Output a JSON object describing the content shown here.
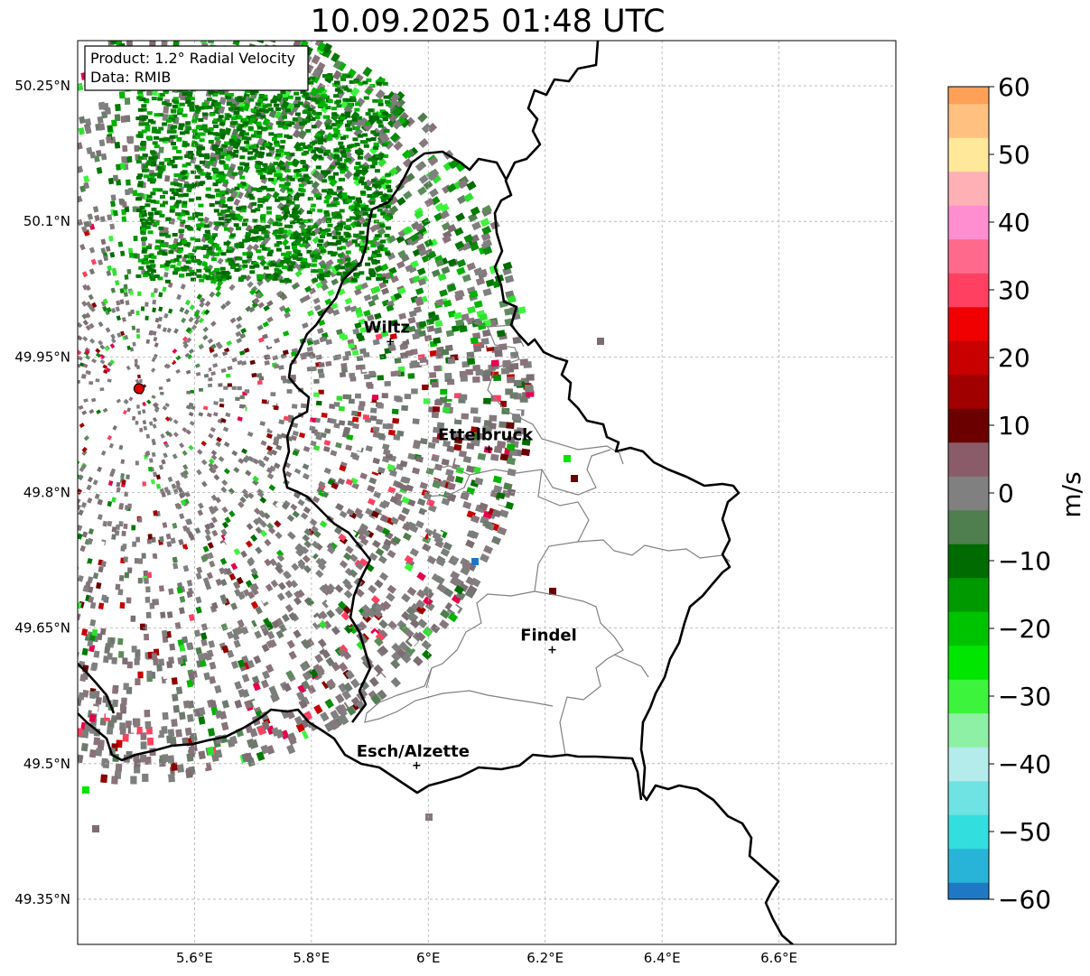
{
  "title": "10.09.2025 01:48 UTC",
  "info_box": {
    "product": "Product: 1.2° Radial Velocity",
    "source": "Data: RMIB"
  },
  "map": {
    "lon_range": [
      5.4,
      6.8
    ],
    "lat_range": [
      49.3,
      50.3
    ],
    "lon_ticks": [
      {
        "value": 5.6,
        "label": "5.6°E"
      },
      {
        "value": 5.8,
        "label": "5.8°E"
      },
      {
        "value": 6.0,
        "label": "6°E"
      },
      {
        "value": 6.2,
        "label": "6.2°E"
      },
      {
        "value": 6.4,
        "label": "6.4°E"
      },
      {
        "value": 6.6,
        "label": "6.6°E"
      }
    ],
    "lat_ticks": [
      {
        "value": 50.25,
        "label": "50.25°N"
      },
      {
        "value": 50.1,
        "label": "50.1°N"
      },
      {
        "value": 49.95,
        "label": "49.95°N"
      },
      {
        "value": 49.8,
        "label": "49.8°N"
      },
      {
        "value": 49.65,
        "label": "49.65°N"
      },
      {
        "value": 49.5,
        "label": "49.5°N"
      },
      {
        "value": 49.35,
        "label": "49.35°N"
      }
    ],
    "radar_site": {
      "lon": 5.505,
      "lat": 49.915
    },
    "cities": [
      {
        "name": "Wiltz",
        "lon": 5.935,
        "lat": 49.967
      },
      {
        "name": "Ettelbruck",
        "lon": 6.104,
        "lat": 49.848
      },
      {
        "name": "Findel",
        "lon": 6.212,
        "lat": 49.626
      },
      {
        "name": "Esch/Alzette",
        "lon": 5.98,
        "lat": 49.498
      }
    ],
    "border_color": "#000000",
    "canton_color": "#808080"
  },
  "colorbar": {
    "label": "m/s",
    "min": -60,
    "max": 60,
    "ticks": [
      {
        "value": 60,
        "label": "60"
      },
      {
        "value": 50,
        "label": "50"
      },
      {
        "value": 40,
        "label": "40"
      },
      {
        "value": 30,
        "label": "30"
      },
      {
        "value": 20,
        "label": "20"
      },
      {
        "value": 10,
        "label": "10"
      },
      {
        "value": 0,
        "label": "0"
      },
      {
        "value": -10,
        "label": "−10"
      },
      {
        "value": -20,
        "label": "−20"
      },
      {
        "value": -30,
        "label": "−30"
      },
      {
        "value": -40,
        "label": "−40"
      },
      {
        "value": -50,
        "label": "−50"
      },
      {
        "value": -60,
        "label": "−60"
      }
    ],
    "stops": [
      {
        "value": -60,
        "color": "#1f78c4"
      },
      {
        "value": -55,
        "color": "#28b4d8"
      },
      {
        "value": -50,
        "color": "#33dede"
      },
      {
        "value": -45,
        "color": "#6fe3e3"
      },
      {
        "value": -40,
        "color": "#b4ecec"
      },
      {
        "value": -35,
        "color": "#8ef0a4"
      },
      {
        "value": -30,
        "color": "#3cf43c"
      },
      {
        "value": -25,
        "color": "#00e600"
      },
      {
        "value": -20,
        "color": "#00c300"
      },
      {
        "value": -15,
        "color": "#009a00"
      },
      {
        "value": -10,
        "color": "#006b00"
      },
      {
        "value": -5,
        "color": "#4f7e4f"
      },
      {
        "value": 0,
        "color": "#808080"
      },
      {
        "value": 5,
        "color": "#8a5c6a"
      },
      {
        "value": 10,
        "color": "#6a0000"
      },
      {
        "value": 15,
        "color": "#a00000"
      },
      {
        "value": 20,
        "color": "#c80000"
      },
      {
        "value": 25,
        "color": "#f00000"
      },
      {
        "value": 30,
        "color": "#ff4060"
      },
      {
        "value": 35,
        "color": "#ff6a8c"
      },
      {
        "value": 40,
        "color": "#ff8ed0"
      },
      {
        "value": 45,
        "color": "#ffb0b4"
      },
      {
        "value": 50,
        "color": "#ffe89a"
      },
      {
        "value": 55,
        "color": "#ffc080"
      },
      {
        "value": 60,
        "color": "#ffa058"
      }
    ]
  }
}
